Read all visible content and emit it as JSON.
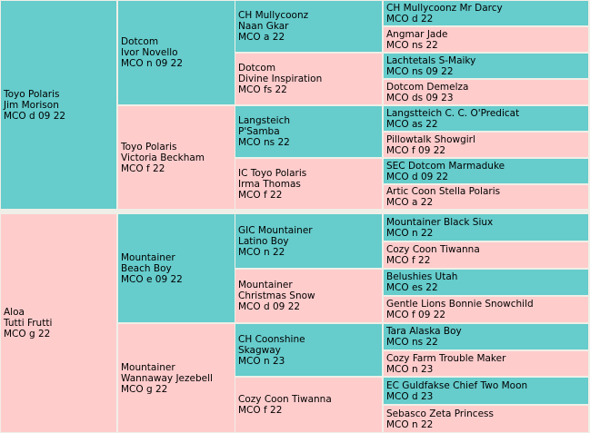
{
  "colors": {
    "male": "#66cccc",
    "female": "#ffcccc",
    "background": "#efefe7"
  },
  "sire_side": {
    "subject": {
      "line1": "Toyo Polaris",
      "line2": "Jim Morison",
      "line3": "MCO d 09 22"
    },
    "sire": {
      "line1": "Dotcom",
      "line2": "Ivor Novello",
      "line3": "MCO n 09 22"
    },
    "dam": {
      "line1": "Toyo Polaris",
      "line2": "Victoria Beckham",
      "line3": "MCO f 22"
    },
    "g3": [
      {
        "line1": "CH Mullycoonz",
        "line2": "Naan Gkar",
        "line3": "MCO a 22"
      },
      {
        "line1": "Dotcom",
        "line2": "Divine Inspiration",
        "line3": "MCO fs 22"
      },
      {
        "line1": "Langsteich",
        "line2": "P'Samba",
        "line3": "MCO ns 22"
      },
      {
        "line1": "IC Toyo Polaris",
        "line2": "Irma Thomas",
        "line3": "MCO f 22"
      }
    ],
    "g4": [
      {
        "name": "CH Mullycoonz Mr Darcy",
        "code": "MCO d 22"
      },
      {
        "name": "Angmar Jade",
        "code": "MCO ns 22"
      },
      {
        "name": "Lachtetals S-Maiky",
        "code": "MCO ns 09 22"
      },
      {
        "name": "Dotcom Demelza",
        "code": "MCO ds 09 23"
      },
      {
        "name": "Langstteich C. C. O'Predicat",
        "code": "MCO as 22"
      },
      {
        "name": "Pillowtalk Showgirl",
        "code": "MCO f 09 22"
      },
      {
        "name": "SEC Dotcom Marmaduke",
        "code": "MCO d 09 22"
      },
      {
        "name": "Artic Coon Stella Polaris",
        "code": "MCO a 22"
      }
    ]
  },
  "dam_side": {
    "subject": {
      "line1": "Aloa",
      "line2": "Tutti Frutti",
      "line3": "MCO g 22"
    },
    "sire": {
      "line1": "Mountainer",
      "line2": "Beach Boy",
      "line3": "MCO e 09 22"
    },
    "dam": {
      "line1": "Mountainer",
      "line2": "Wannaway Jezebell",
      "line3": "MCO g 22"
    },
    "g3": [
      {
        "line1": "GIC Mountainer",
        "line2": "Latino Boy",
        "line3": "MCO n 22"
      },
      {
        "line1": "Mountainer",
        "line2": "Christmas Snow",
        "line3": "MCO d 09 22"
      },
      {
        "line1": "CH Coonshine",
        "line2": "Skagway",
        "line3": "MCO n 23"
      },
      {
        "line1": "Cozy Coon Tiwanna",
        "line2": "",
        "line3": "MCO f 22"
      }
    ],
    "g4": [
      {
        "name": "Mountainer Black Siux",
        "code": "MCO n 22"
      },
      {
        "name": "Cozy Coon Tiwanna",
        "code": "MCO f 22"
      },
      {
        "name": "Belushies Utah",
        "code": "MCO es 22"
      },
      {
        "name": "Gentle Lions Bonnie Snowchild",
        "code": "MCO f 09 22"
      },
      {
        "name": "Tara Alaska Boy",
        "code": "MCO ns 22"
      },
      {
        "name": "Cozy Farm Trouble Maker",
        "code": "MCO n 23"
      },
      {
        "name": "EC Guldfakse Chief Two Moon",
        "code": "MCO d 23"
      },
      {
        "name": "Sebasco Zeta Princess",
        "code": "MCO n 22"
      }
    ]
  }
}
